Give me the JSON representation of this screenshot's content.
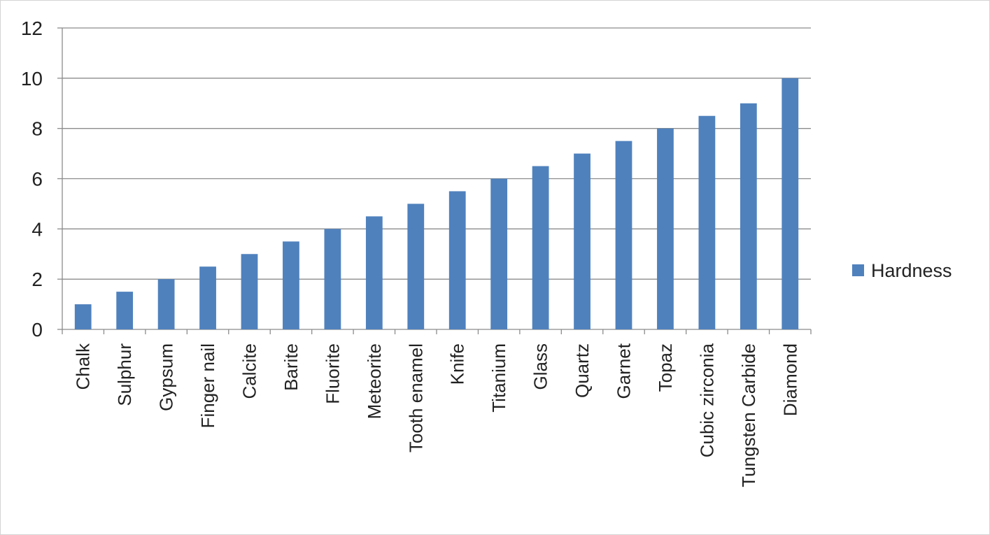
{
  "chart_data": {
    "type": "bar",
    "title": "",
    "xlabel": "",
    "ylabel": "",
    "ylim": [
      0,
      12
    ],
    "yticks": [
      0,
      2,
      4,
      6,
      8,
      10,
      12
    ],
    "grid": true,
    "legend_position": "right",
    "categories": [
      "Chalk",
      "Sulphur",
      "Gypsum",
      "Finger nail",
      "Calcite",
      "Barite",
      "Fluorite",
      "Meteorite",
      "Tooth enamel",
      "Knife",
      "Titanium",
      "Glass",
      "Quartz",
      "Garnet",
      "Topaz",
      "Cubic zirconia",
      "Tungsten Carbide",
      "Diamond"
    ],
    "series": [
      {
        "name": "Hardness",
        "color": "#4f81bd",
        "values": [
          1,
          1.5,
          2,
          2.5,
          3,
          3.5,
          4,
          4.5,
          5,
          5.5,
          6,
          6.5,
          7,
          7.5,
          8,
          8.5,
          9,
          10
        ]
      }
    ]
  }
}
